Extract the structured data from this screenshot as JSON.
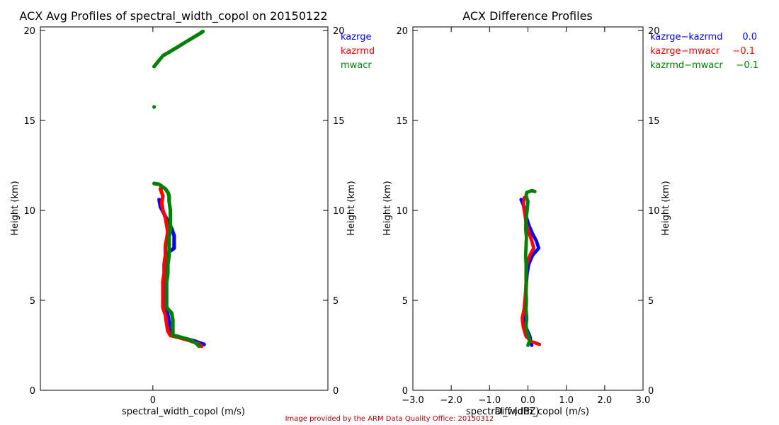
{
  "colors": {
    "kazrge": "#0000ff",
    "kazrmd": "#ff0000",
    "mwacr": "#008000",
    "axis": "#000000",
    "credit": "#b30000"
  },
  "credit": "Image provided by the ARM Data Quality Office: 20150312",
  "chart_data": [
    {
      "type": "scatter",
      "title": "ACX Avg Profiles of spectral_width_copol on 20150122",
      "xlabel": "spectral_width_copol (m/s)",
      "ylabel": "Height (km)",
      "ylabel_right": "Height (km)",
      "xlim": [
        -0.9,
        1.4
      ],
      "ylim": [
        0,
        20.2
      ],
      "xticks": [
        0
      ],
      "xtick_labels": [
        "0"
      ],
      "yticks": [
        0,
        5,
        10,
        15,
        20
      ],
      "ytick_labels": [
        "0",
        "5",
        "10",
        "15",
        "20"
      ],
      "legend": [
        "kazrge",
        "kazrmd",
        "mwacr"
      ],
      "legend_location": "top-right",
      "series": [
        {
          "name": "kazrge",
          "color": "#0000ff",
          "points": [
            [
              0.41,
              2.55
            ],
            [
              0.38,
              2.62
            ],
            [
              0.33,
              2.75
            ],
            [
              0.22,
              2.95
            ],
            [
              0.16,
              3.05
            ],
            [
              0.14,
              3.2
            ],
            [
              0.13,
              3.4
            ],
            [
              0.13,
              3.8
            ],
            [
              0.12,
              4.2
            ],
            [
              0.1,
              4.6
            ],
            [
              0.09,
              5.0
            ],
            [
              0.09,
              5.5
            ],
            [
              0.09,
              6.0
            ],
            [
              0.1,
              6.5
            ],
            [
              0.11,
              7.0
            ],
            [
              0.12,
              7.4
            ],
            [
              0.13,
              7.7
            ],
            [
              0.17,
              7.9
            ],
            [
              0.17,
              8.2
            ],
            [
              0.17,
              8.6
            ],
            [
              0.15,
              9.0
            ],
            [
              0.12,
              9.4
            ],
            [
              0.09,
              9.8
            ],
            [
              0.06,
              10.2
            ],
            [
              0.05,
              10.6
            ]
          ]
        },
        {
          "name": "kazrmd",
          "color": "#ff0000",
          "points": [
            [
              0.39,
              2.45
            ],
            [
              0.36,
              2.6
            ],
            [
              0.3,
              2.75
            ],
            [
              0.2,
              2.95
            ],
            [
              0.14,
              3.05
            ],
            [
              0.12,
              3.3
            ],
            [
              0.11,
              3.7
            ],
            [
              0.1,
              4.2
            ],
            [
              0.08,
              4.6
            ],
            [
              0.08,
              5.0
            ],
            [
              0.08,
              5.5
            ],
            [
              0.08,
              6.0
            ],
            [
              0.09,
              6.5
            ],
            [
              0.09,
              7.0
            ],
            [
              0.1,
              7.5
            ],
            [
              0.1,
              8.0
            ],
            [
              0.11,
              8.4
            ],
            [
              0.12,
              8.8
            ],
            [
              0.11,
              9.2
            ],
            [
              0.1,
              9.6
            ],
            [
              0.08,
              10.0
            ],
            [
              0.07,
              10.4
            ],
            [
              0.08,
              10.8
            ],
            [
              0.06,
              11.2
            ],
            [
              0.08,
              11.3
            ]
          ]
        },
        {
          "name": "mwacr",
          "color": "#008000",
          "points": [
            [
              0.37,
              2.45
            ],
            [
              0.35,
              2.6
            ],
            [
              0.3,
              2.8
            ],
            [
              0.2,
              3.0
            ],
            [
              0.16,
              3.05
            ],
            [
              0.16,
              3.4
            ],
            [
              0.16,
              3.9
            ],
            [
              0.15,
              4.3
            ],
            [
              0.11,
              4.6
            ],
            [
              0.11,
              5.0
            ],
            [
              0.11,
              5.5
            ],
            [
              0.11,
              6.0
            ],
            [
              0.12,
              6.5
            ],
            [
              0.12,
              7.0
            ],
            [
              0.13,
              7.5
            ],
            [
              0.13,
              8.0
            ],
            [
              0.13,
              8.5
            ],
            [
              0.14,
              9.0
            ],
            [
              0.14,
              9.5
            ],
            [
              0.14,
              10.0
            ],
            [
              0.13,
              10.5
            ],
            [
              0.13,
              10.8
            ],
            [
              0.12,
              11.0
            ],
            [
              0.1,
              11.2
            ],
            [
              0.05,
              11.45
            ],
            [
              0.01,
              11.5
            ],
            [
              0.01,
              15.75
            ],
            [
              0.01,
              18.0
            ],
            [
              0.08,
              18.6
            ],
            [
              0.13,
              18.8
            ],
            [
              0.19,
              19.05
            ],
            [
              0.26,
              19.35
            ],
            [
              0.32,
              19.6
            ],
            [
              0.38,
              19.85
            ],
            [
              0.4,
              19.95
            ]
          ]
        }
      ]
    },
    {
      "type": "scatter",
      "title": "ACX Difference Profiles",
      "xlabel": "spectral_width_copol (m/s)",
      "xlabel_overlay": "Diff (dBZ)",
      "ylabel": "Height (km)",
      "ylabel_right": "Height (km)",
      "xlim": [
        -3.0,
        3.0
      ],
      "ylim": [
        0,
        20.2
      ],
      "xticks": [
        -3.0,
        -2.0,
        -1.0,
        0.0,
        1.0,
        2.0,
        3.0
      ],
      "xtick_labels": [
        "−3.0",
        "−2.0",
        "−1.0",
        "0.0",
        "1.0",
        "2.0",
        "3.0"
      ],
      "yticks": [
        0,
        5,
        10,
        15,
        20
      ],
      "ytick_labels": [
        "0",
        "5",
        "10",
        "15",
        "20"
      ],
      "legend": [
        {
          "label": "kazrge−kazrmd",
          "value": "0.0",
          "color": "#0000ff"
        },
        {
          "label": "kazrge−mwacr",
          "value": "−0.1",
          "color": "#ff0000"
        },
        {
          "label": "kazrmd−mwacr",
          "value": "−0.1",
          "color": "#008000"
        }
      ],
      "legend_location": "top-right",
      "series": [
        {
          "name": "kazrge−kazrmd",
          "color": "#0000ff",
          "points": [
            [
              0.1,
              2.5
            ],
            [
              0.05,
              3.0
            ],
            [
              -0.05,
              3.5
            ],
            [
              -0.12,
              4.0
            ],
            [
              -0.1,
              4.5
            ],
            [
              -0.05,
              5.0
            ],
            [
              -0.05,
              5.5
            ],
            [
              -0.04,
              6.0
            ],
            [
              -0.02,
              6.5
            ],
            [
              0.02,
              7.0
            ],
            [
              0.12,
              7.5
            ],
            [
              0.28,
              7.9
            ],
            [
              0.22,
              8.3
            ],
            [
              0.12,
              8.7
            ],
            [
              0.02,
              9.2
            ],
            [
              -0.05,
              9.7
            ],
            [
              -0.1,
              10.2
            ],
            [
              -0.18,
              10.6
            ]
          ]
        },
        {
          "name": "kazrge−mwacr",
          "color": "#ff0000",
          "points": [
            [
              0.3,
              2.55
            ],
            [
              0.1,
              2.7
            ],
            [
              -0.05,
              3.0
            ],
            [
              -0.12,
              3.5
            ],
            [
              -0.15,
              4.0
            ],
            [
              -0.1,
              4.5
            ],
            [
              -0.08,
              5.0
            ],
            [
              -0.06,
              5.5
            ],
            [
              -0.05,
              6.0
            ],
            [
              -0.04,
              6.5
            ],
            [
              -0.03,
              7.0
            ],
            [
              0.05,
              7.5
            ],
            [
              0.15,
              7.9
            ],
            [
              0.1,
              8.3
            ],
            [
              0.02,
              8.8
            ],
            [
              -0.05,
              9.3
            ],
            [
              -0.08,
              9.8
            ],
            [
              -0.12,
              10.3
            ],
            [
              -0.1,
              10.7
            ]
          ]
        },
        {
          "name": "kazrmd−mwacr",
          "color": "#008000",
          "points": [
            [
              0.0,
              2.5
            ],
            [
              0.05,
              2.8
            ],
            [
              -0.02,
              3.2
            ],
            [
              -0.05,
              3.6
            ],
            [
              -0.03,
              4.0
            ],
            [
              -0.05,
              4.5
            ],
            [
              -0.04,
              5.0
            ],
            [
              -0.05,
              5.5
            ],
            [
              -0.05,
              6.0
            ],
            [
              -0.05,
              6.5
            ],
            [
              -0.05,
              7.0
            ],
            [
              -0.06,
              7.5
            ],
            [
              -0.05,
              8.0
            ],
            [
              -0.04,
              8.5
            ],
            [
              -0.06,
              9.0
            ],
            [
              -0.05,
              9.5
            ],
            [
              -0.02,
              10.0
            ],
            [
              0.0,
              10.5
            ],
            [
              -0.05,
              10.8
            ],
            [
              -0.03,
              11.0
            ],
            [
              0.1,
              11.1
            ],
            [
              0.18,
              11.05
            ]
          ]
        }
      ]
    }
  ]
}
